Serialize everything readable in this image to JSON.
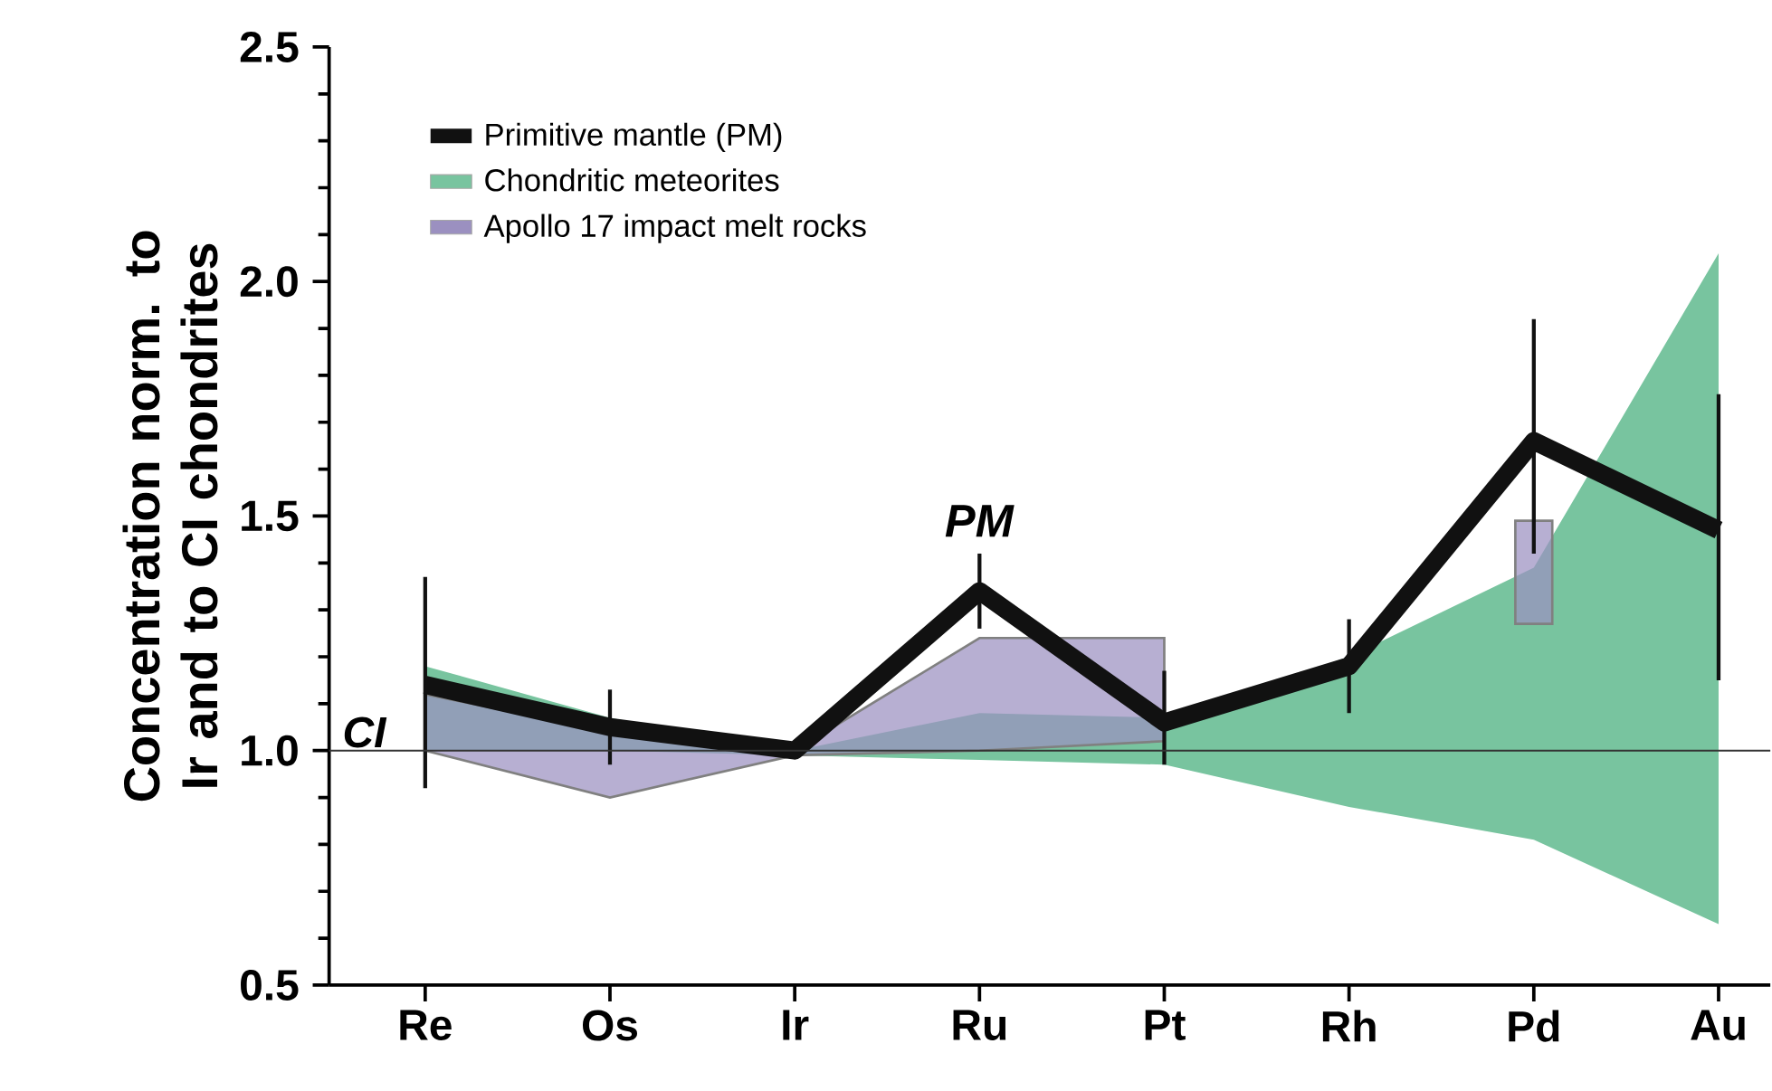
{
  "chart_data": {
    "type": "line",
    "ylabel": "Concentration norm. to Ir and to CI chondrites",
    "categories": [
      "Re",
      "Os",
      "Ir",
      "Ru",
      "Pt",
      "Rh",
      "Pd",
      "Au"
    ],
    "series": [
      {
        "name": "Chondritic meteorites",
        "type": "area",
        "color": "#78c49f",
        "lower": [
          1.0,
          1.0,
          0.99,
          0.98,
          0.97,
          0.88,
          0.81,
          0.63
        ],
        "upper": [
          1.18,
          1.07,
          1.0,
          1.08,
          1.07,
          1.2,
          1.39,
          2.06
        ],
        "values": [
          null,
          null,
          null,
          null,
          null,
          null,
          null,
          null
        ]
      },
      {
        "name": "Apollo 17 impact melt rocks",
        "type": "area",
        "color": "#9b90c0",
        "lower": [
          1.0,
          0.9,
          0.99,
          1.0,
          1.02,
          null,
          null,
          null
        ],
        "upper": [
          1.12,
          1.04,
          1.0,
          1.24,
          1.24,
          null,
          null,
          null
        ],
        "values": [
          null,
          null,
          null,
          null,
          null,
          null,
          null,
          null
        ]
      },
      {
        "type": "bar",
        "color": "#9b90c0",
        "base": [
          null,
          null,
          null,
          null,
          null,
          null,
          1.27,
          null
        ],
        "values": [
          null,
          null,
          null,
          null,
          null,
          null,
          0.22,
          null
        ]
      },
      {
        "name": "Primitive mantle (PM)",
        "type": "line",
        "color": "#111111",
        "values": [
          1.14,
          1.05,
          1.0,
          1.34,
          1.06,
          1.18,
          1.66,
          1.47
        ],
        "errors": [
          [
            0.92,
            1.37
          ],
          [
            0.97,
            1.13
          ],
          null,
          [
            1.26,
            1.42
          ],
          [
            0.97,
            1.17
          ],
          [
            1.08,
            1.28
          ],
          [
            1.42,
            1.92
          ],
          [
            1.15,
            1.76
          ]
        ]
      }
    ],
    "ylim": [
      0.5,
      2.5
    ],
    "yticks": [
      {
        "value": 0.5,
        "label": "0.5"
      },
      {
        "value": 0.6,
        "label": null
      },
      {
        "value": 0.7,
        "label": null
      },
      {
        "value": 0.8,
        "label": null
      },
      {
        "value": 0.9,
        "label": null
      },
      {
        "value": 1.0,
        "label": "1.0"
      },
      {
        "value": 1.1,
        "label": null
      },
      {
        "value": 1.2,
        "label": null
      },
      {
        "value": 1.3,
        "label": null
      },
      {
        "value": 1.4,
        "label": null
      },
      {
        "value": 1.5,
        "label": "1.5"
      },
      {
        "value": 1.6,
        "label": null
      },
      {
        "value": 1.7,
        "label": null
      },
      {
        "value": 1.8,
        "label": null
      },
      {
        "value": 1.9,
        "label": null
      },
      {
        "value": 2.0,
        "label": "2.0"
      },
      {
        "value": 2.1,
        "label": null
      },
      {
        "value": 2.2,
        "label": null
      },
      {
        "value": 2.3,
        "label": null
      },
      {
        "value": 2.4,
        "label": null
      },
      {
        "value": 2.5,
        "label": "2.5"
      }
    ],
    "ref_lines": [
      {
        "axis": "y",
        "value": 1.0,
        "label": "CI",
        "color": "#333333"
      }
    ],
    "annotations": [
      "PM"
    ],
    "legend": "top left",
    "marker": "none",
    "line_style": "solid",
    "grid": false
  }
}
